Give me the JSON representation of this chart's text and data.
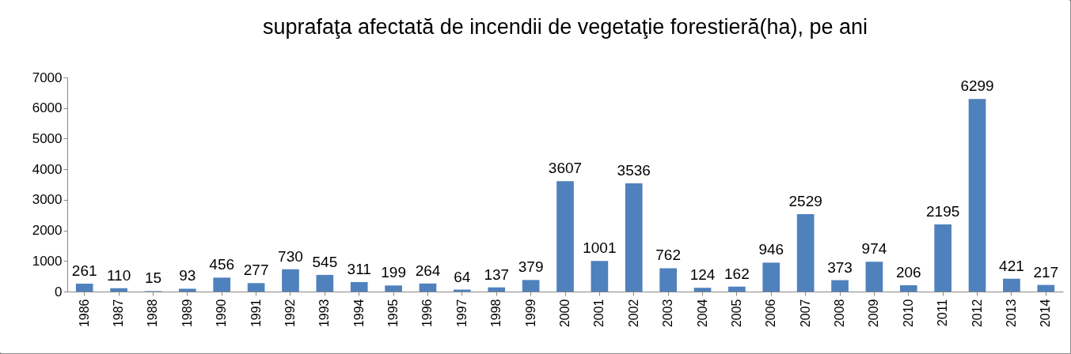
{
  "chart_data": {
    "type": "bar",
    "title": "suprafaţa afectată de incendii de vegetaţie forestieră(ha), pe ani",
    "categories": [
      "1986",
      "1987",
      "1988",
      "1989",
      "1990",
      "1991",
      "1992",
      "1993",
      "1994",
      "1995",
      "1996",
      "1997",
      "1998",
      "1999",
      "2000",
      "2001",
      "2002",
      "2003",
      "2004",
      "2005",
      "2006",
      "2007",
      "2008",
      "2009",
      "2010",
      "2011",
      "2012",
      "2013",
      "2014"
    ],
    "values": [
      261,
      110,
      15,
      93,
      456,
      277,
      730,
      545,
      311,
      199,
      264,
      64,
      137,
      379,
      3607,
      1001,
      3536,
      762,
      124,
      162,
      946,
      2529,
      373,
      974,
      206,
      2195,
      6299,
      421,
      217
    ],
    "color": "#4f81bd",
    "ylim": [
      0,
      7000
    ],
    "yticks": [
      0,
      1000,
      2000,
      3000,
      4000,
      5000,
      6000,
      7000
    ],
    "data_labels": true
  }
}
